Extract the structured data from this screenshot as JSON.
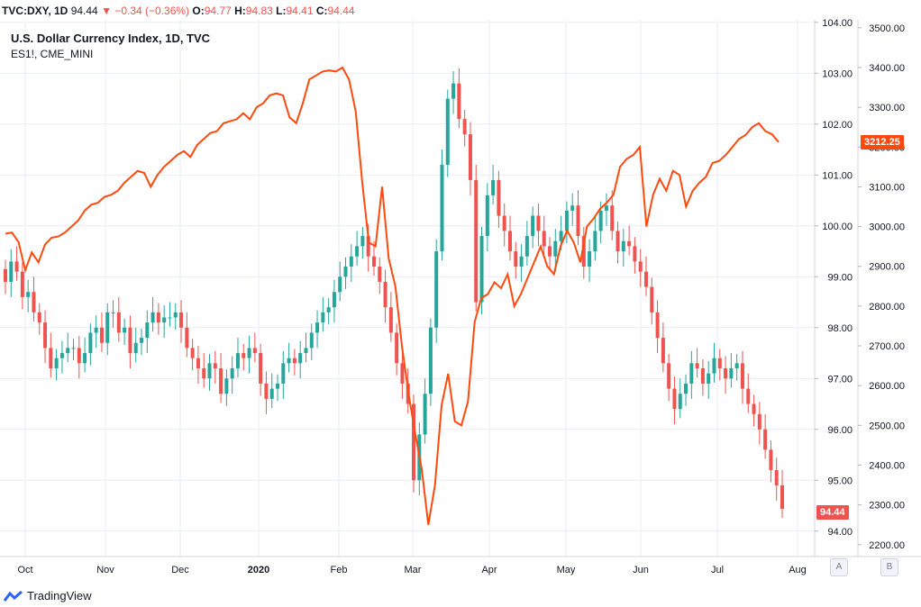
{
  "header": {
    "symbol": "TVC:DXY, 1D",
    "last": "94.44",
    "change_arrow": "▼",
    "change": "−0.34 (−0.36%)",
    "open_label": "O:",
    "open": "94.77",
    "high_label": "H:",
    "high": "94.83",
    "low_label": "L:",
    "low": "94.41",
    "close_label": "C:",
    "close": "94.44"
  },
  "legend": {
    "main": "U.S. Dollar Currency Index, 1D, TVC",
    "overlay": "ES1!, CME_MINI"
  },
  "badges": {
    "es_price": "3212.25",
    "dxy_price": "94.44"
  },
  "scale_buttons": {
    "a": "A",
    "b": "B"
  },
  "brand": "TradingView",
  "colors": {
    "up": "#26a69a",
    "down": "#ef5350",
    "overlay": "#ff4a0f",
    "grid": "#e9edf3"
  },
  "chart_data": {
    "type": "line",
    "title": "U.S. Dollar Currency Index, 1D, TVC",
    "x_ticks": [
      "Oct",
      "Nov",
      "Dec",
      "2020",
      "Feb",
      "Mar",
      "Apr",
      "May",
      "Jun",
      "Jul",
      "Aug"
    ],
    "left_axis": {
      "ticks": [
        "104.00",
        "103.00",
        "102.00",
        "101.00",
        "100.00",
        "99.00",
        "98.00",
        "97.00",
        "96.00",
        "95.00",
        "94.00"
      ],
      "ylim": [
        93.5,
        104.05
      ]
    },
    "right_axis": {
      "ticks": [
        "3500.00",
        "3400.00",
        "3300.00",
        "3200.00",
        "3100.00",
        "3000.00",
        "2900.00",
        "2800.00",
        "2700.00",
        "2600.00",
        "2500.00",
        "2400.00",
        "2300.00",
        "2200.00"
      ],
      "ylim": [
        2170,
        3520
      ]
    },
    "grid": true,
    "series": [
      {
        "name": "U.S. Dollar Currency Index, 1D, TVC",
        "kind": "candlestick",
        "closes": [
          98.9,
          99.3,
          99.1,
          98.6,
          98.7,
          98.3,
          98.1,
          97.6,
          97.2,
          97.4,
          97.5,
          97.6,
          97.6,
          97.3,
          97.5,
          97.9,
          98.0,
          97.7,
          98.3,
          98.3,
          97.9,
          98.0,
          97.5,
          97.7,
          97.8,
          98.1,
          98.3,
          98.1,
          98.2,
          98.2,
          98.3,
          98.0,
          97.6,
          97.4,
          97.2,
          97.0,
          97.3,
          97.2,
          96.7,
          97.0,
          97.2,
          97.5,
          97.4,
          97.6,
          97.5,
          96.9,
          96.6,
          96.8,
          96.9,
          97.3,
          97.4,
          97.3,
          97.5,
          97.6,
          97.9,
          98.1,
          98.3,
          98.4,
          98.7,
          99.0,
          99.2,
          99.4,
          99.6,
          99.8,
          99.4,
          99.2,
          98.9,
          98.4,
          97.9,
          97.3,
          96.9,
          96.5,
          95.0,
          95.9,
          96.7,
          98.0,
          99.5,
          101.2,
          102.5,
          102.8,
          102.1,
          101.8,
          100.9,
          98.5,
          99.8,
          100.6,
          100.9,
          100.2,
          99.9,
          99.5,
          99.2,
          99.4,
          99.8,
          100.2,
          99.9,
          99.6,
          99.4,
          99.7,
          99.9,
          100.3,
          100.4,
          99.8,
          99.2,
          99.5,
          99.9,
          100.3,
          100.4,
          99.9,
          99.5,
          99.7,
          99.6,
          99.3,
          99.1,
          98.8,
          98.3,
          97.8,
          97.3,
          96.8,
          96.4,
          96.7,
          96.9,
          97.3,
          97.2,
          96.9,
          97.1,
          97.4,
          97.2,
          97.0,
          97.2,
          97.3,
          96.8,
          96.5,
          96.3,
          96.0,
          95.6,
          95.2,
          94.9,
          94.44
        ]
      },
      {
        "name": "ES1!, CME_MINI",
        "kind": "line",
        "values": [
          2982,
          2985,
          2960,
          2890,
          2935,
          2910,
          2955,
          2972,
          2975,
          2985,
          3000,
          3015,
          3040,
          3055,
          3060,
          3075,
          3080,
          3090,
          3110,
          3125,
          3140,
          3135,
          3100,
          3130,
          3150,
          3165,
          3180,
          3190,
          3175,
          3205,
          3220,
          3235,
          3240,
          3260,
          3265,
          3270,
          3285,
          3270,
          3300,
          3310,
          3330,
          3335,
          3330,
          3275,
          3260,
          3310,
          3370,
          3380,
          3390,
          3393,
          3390,
          3400,
          3370,
          3290,
          3110,
          2960,
          2950,
          3100,
          2920,
          2850,
          2700,
          2580,
          2480,
          2390,
          2250,
          2350,
          2550,
          2630,
          2510,
          2500,
          2560,
          2760,
          2820,
          2830,
          2860,
          2845,
          2880,
          2800,
          2830,
          2870,
          2910,
          2950,
          2900,
          2880,
          2950,
          2990,
          2960,
          2910,
          3000,
          3020,
          3045,
          3060,
          3080,
          3150,
          3170,
          3180,
          3200,
          3000,
          3080,
          3120,
          3090,
          3140,
          3130,
          3050,
          3090,
          3110,
          3125,
          3160,
          3165,
          3180,
          3200,
          3220,
          3230,
          3250,
          3260,
          3240,
          3232,
          3212.25
        ]
      }
    ]
  }
}
